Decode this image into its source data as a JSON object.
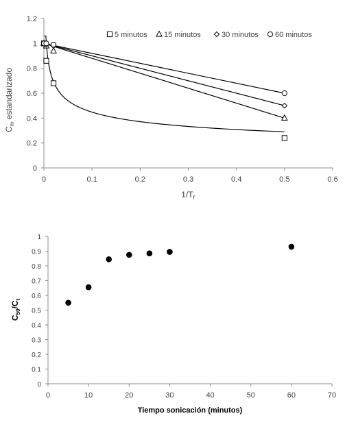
{
  "chart_data": [
    {
      "type": "scatter",
      "ylabel_main": "C",
      "ylabel_sub": "m",
      "ylabel_rest": " estandarizado",
      "xlabel_main": "1/T",
      "xlabel_sub": "f",
      "xlim": [
        0,
        0.6
      ],
      "ylim": [
        0,
        1.2
      ],
      "xticks": [
        "0",
        "0.1",
        "0.2",
        "0.3",
        "0.4",
        "0.5",
        "0.6"
      ],
      "yticks": [
        "0",
        "0.2",
        "0.4",
        "0.6",
        "0.8",
        "1",
        "1.2"
      ],
      "xtick_values": [
        0,
        0.1,
        0.2,
        0.3,
        0.4,
        0.5,
        0.6
      ],
      "ytick_values": [
        0,
        0.2,
        0.4,
        0.6,
        0.8,
        1,
        1.2
      ],
      "grid": false,
      "legend_position": "top-right",
      "series": [
        {
          "name": "5 minutos",
          "marker": "square",
          "x": [
            0,
            0.005,
            0.02,
            0.5
          ],
          "y": [
            1,
            0.86,
            0.68,
            0.24
          ],
          "trend": "power"
        },
        {
          "name": "15 minutos",
          "marker": "triangle",
          "x": [
            0,
            0.005,
            0.02,
            0.5
          ],
          "y": [
            1,
            0.98,
            0.94,
            0.4
          ],
          "trend": "linear"
        },
        {
          "name": "30 minutos",
          "marker": "diamond",
          "x": [
            0,
            0.005,
            0.02,
            0.5
          ],
          "y": [
            1,
            0.99,
            0.98,
            0.5
          ],
          "trend": "linear"
        },
        {
          "name": "60 minutos",
          "marker": "circle",
          "x": [
            0,
            0.005,
            0.02,
            0.5
          ],
          "y": [
            1,
            1.0,
            0.99,
            0.6
          ],
          "trend": "linear"
        }
      ]
    },
    {
      "type": "scatter",
      "ylabel_main": "C",
      "ylabel_sub1": "50",
      "ylabel_mid": "/C",
      "ylabel_sub2": "t",
      "xlabel": "Tiempo sonicación (minutos)",
      "xlim": [
        0,
        70
      ],
      "ylim": [
        0,
        1
      ],
      "xticks": [
        "0",
        "10",
        "20",
        "30",
        "40",
        "50",
        "60",
        "70"
      ],
      "yticks": [
        "0",
        "0.1",
        "0.2",
        "0.3",
        "0.4",
        "0.5",
        "0.6",
        "0.7",
        "0.8",
        "0.9",
        "1"
      ],
      "xtick_values": [
        0,
        10,
        20,
        30,
        40,
        50,
        60,
        70
      ],
      "ytick_values": [
        0,
        0.1,
        0.2,
        0.3,
        0.4,
        0.5,
        0.6,
        0.7,
        0.8,
        0.9,
        1
      ],
      "grid": false,
      "series": [
        {
          "marker": "filled-circle",
          "x": [
            5,
            10,
            15,
            20,
            25,
            30,
            60
          ],
          "y": [
            0.55,
            0.655,
            0.845,
            0.875,
            0.885,
            0.895,
            0.93
          ]
        }
      ]
    }
  ]
}
